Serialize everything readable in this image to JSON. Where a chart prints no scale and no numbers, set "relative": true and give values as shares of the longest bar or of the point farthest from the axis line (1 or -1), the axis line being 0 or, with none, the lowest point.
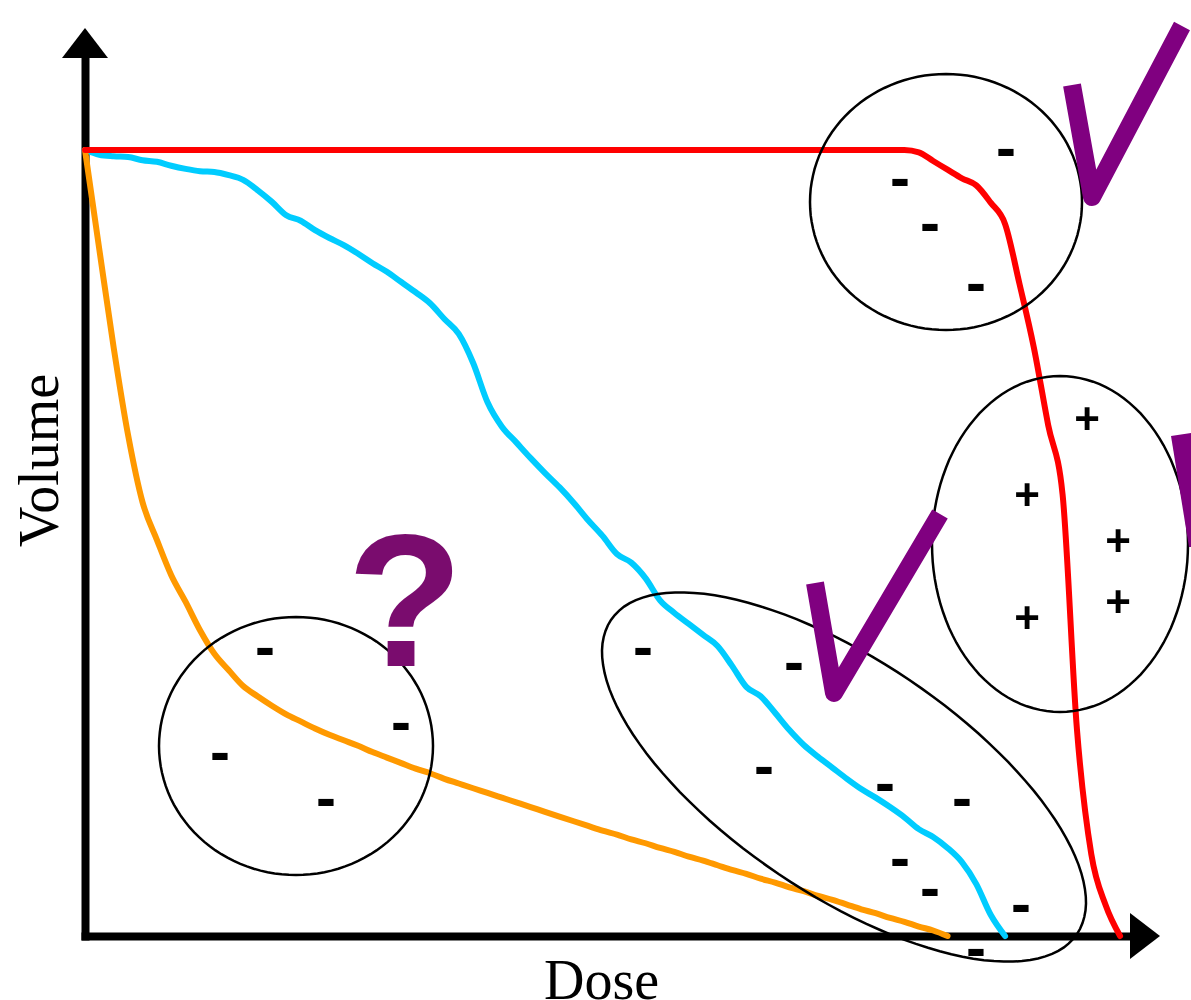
{
  "chart_data": {
    "type": "line",
    "relative": true,
    "xlabel": "Dose",
    "ylabel": "Volume",
    "categories": [
      null,
      null,
      null,
      null,
      null,
      null,
      null,
      null,
      null,
      null,
      null,
      null,
      null,
      null,
      null,
      null,
      null,
      null,
      null,
      null,
      null,
      null,
      null,
      null,
      null,
      null,
      null,
      null,
      null,
      null,
      null,
      null,
      null,
      null,
      null,
      null,
      null,
      null,
      null,
      null,
      null,
      null,
      null,
      null,
      null,
      null,
      null,
      null,
      null,
      null,
      null,
      null,
      null,
      null,
      null,
      null,
      null,
      null,
      null,
      null,
      null,
      null,
      null,
      null,
      null,
      null,
      null,
      null,
      null,
      null,
      null,
      null,
      null
    ],
    "series": [
      {
        "color": "#00ccff",
        "values": [
          1,
          0.994,
          0.992,
          0.991,
          0.987,
          0.985,
          0.98,
          0.976,
          0.973,
          0.972,
          0.968,
          0.962,
          0.949,
          0.934,
          0.917,
          0.91,
          0.898,
          0.888,
          0.879,
          0.868,
          0.856,
          0.845,
          0.832,
          0.819,
          0.805,
          0.785,
          0.766,
          0.729,
          0.679,
          0.648,
          0.628,
          0.608,
          0.589,
          0.571,
          0.551,
          0.529,
          0.509,
          0.486,
          0.475,
          0.455,
          0.427,
          0.411,
          0.397,
          0.383,
          0.369,
          0.344,
          0.317,
          0.305,
          0.284,
          0.262,
          0.243,
          0.228,
          0.214,
          0.2,
          0.187,
          0.176,
          0.164,
          0.151,
          0.136,
          0.126,
          0.112,
          0.094,
          0.066,
          0.027,
          0,
          null,
          null,
          null,
          null,
          null,
          null,
          null,
          null
        ]
      },
      {
        "color": "#ff9900",
        "values": [
          1,
          0.873,
          0.748,
          0.637,
          0.552,
          0.504,
          0.459,
          0.425,
          0.389,
          0.359,
          0.338,
          0.318,
          0.305,
          0.293,
          0.282,
          0.273,
          0.264,
          0.256,
          0.249,
          0.242,
          0.234,
          0.227,
          0.22,
          0.213,
          0.207,
          0.2,
          0.194,
          0.188,
          0.182,
          0.176,
          0.17,
          0.164,
          0.158,
          0.152,
          0.146,
          0.14,
          0.134,
          0.129,
          0.123,
          0.118,
          0.112,
          0.107,
          0.101,
          0.096,
          0.09,
          0.084,
          0.079,
          0.073,
          0.068,
          0.062,
          0.057,
          0.051,
          0.046,
          0.04,
          0.034,
          0.029,
          0.023,
          0.018,
          0.012,
          0.007,
          0,
          null,
          null,
          null,
          null,
          null,
          null,
          null,
          null,
          null,
          null,
          null,
          null
        ]
      },
      {
        "color": "#ff0000",
        "values": [
          1,
          1,
          1,
          1,
          1,
          1,
          1,
          1,
          1,
          1,
          1,
          1,
          1,
          1,
          1,
          1,
          1,
          1,
          1,
          1,
          1,
          1,
          1,
          1,
          1,
          1,
          1,
          1,
          1,
          1,
          1,
          1,
          1,
          1,
          1,
          1,
          1,
          1,
          1,
          1,
          1,
          1,
          1,
          1,
          1,
          1,
          1,
          1,
          1,
          1,
          1,
          1,
          1,
          1,
          1,
          1,
          1,
          1,
          0.997,
          0.986,
          0.975,
          0.964,
          0.955,
          0.933,
          0.906,
          0.83,
          0.749,
          0.65,
          0.562,
          0.263,
          0.104,
          0.039,
          0
        ]
      }
    ],
    "annotations": [
      "?",
      "-",
      "-",
      "-",
      "-",
      "-",
      "-",
      "-",
      "-",
      "-",
      "-",
      "-",
      "-",
      "-",
      "-",
      "-",
      "-",
      "-",
      "+",
      "+",
      "+",
      "+",
      "+"
    ]
  }
}
